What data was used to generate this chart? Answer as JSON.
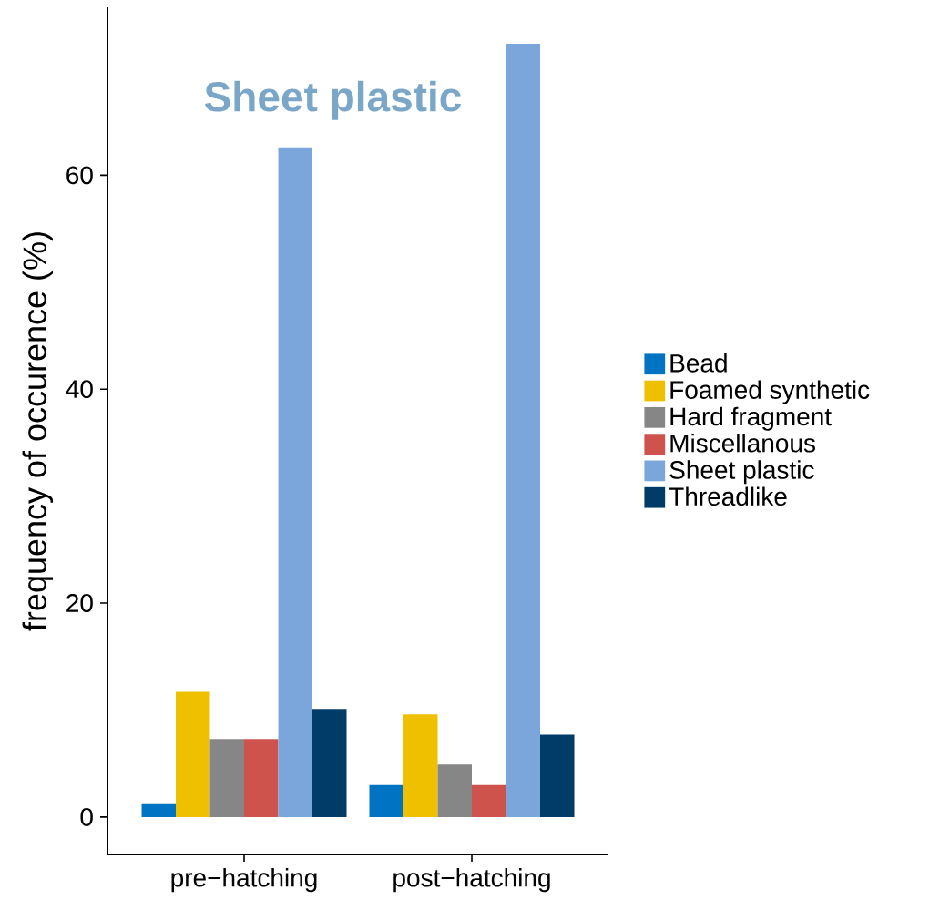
{
  "chart_data": {
    "type": "bar",
    "ylabel": "frequency of occurence (%)",
    "categories": [
      "pre−hatching",
      "post−hatching"
    ],
    "series": [
      {
        "name": "Bead",
        "color": "#0073c2",
        "values": [
          1.2,
          3.0
        ]
      },
      {
        "name": "Foamed synthetic",
        "color": "#efc000",
        "values": [
          11.7,
          9.6
        ]
      },
      {
        "name": "Hard fragment",
        "color": "#868686",
        "values": [
          7.3,
          4.9
        ]
      },
      {
        "name": "Miscellanous",
        "color": "#cd534c",
        "values": [
          7.3,
          3.0
        ]
      },
      {
        "name": "Sheet plastic",
        "color": "#7aa6dc",
        "values": [
          62.6,
          72.3
        ]
      },
      {
        "name": "Threadlike",
        "color": "#003c67",
        "values": [
          10.1,
          7.7
        ]
      }
    ],
    "ylim": [
      -3.5,
      75.7
    ],
    "yticks": [
      0,
      20,
      40,
      60
    ],
    "legend": "right",
    "annotations": [
      "Sheet plastic"
    ]
  }
}
